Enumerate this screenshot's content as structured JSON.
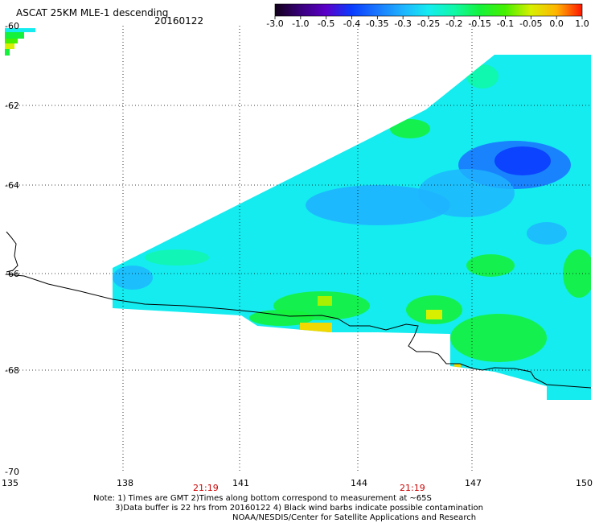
{
  "title": "ASCAT 25KM MLE-1 descending",
  "date": "20160122",
  "colorbar": {
    "tick_labels": [
      "-3.0",
      "-1.0",
      "-0.5",
      "-0.4",
      "-0.35",
      "-0.3",
      "-0.25",
      "-0.2",
      "-0.15",
      "-0.1",
      "-0.05",
      "0.0",
      "1.0"
    ],
    "colors": [
      "#12001a",
      "#38007a",
      "#5a00c8",
      "#0a3cff",
      "#1a78ff",
      "#1eb4ff",
      "#14ecf0",
      "#10f8a8",
      "#14f23c",
      "#46f000",
      "#d8f000",
      "#ffb400",
      "#ff1400"
    ]
  },
  "lat_labels": [
    "-60",
    "-62",
    "-64",
    "-66",
    "-68",
    "-70"
  ],
  "lon_labels": [
    "135",
    "138",
    "141",
    "144",
    "147",
    "150"
  ],
  "time_labels": [
    "21:19",
    "21:19"
  ],
  "note": {
    "line1": "Note: 1) Times are GMT 2)Times along bottom correspond to measurement at ~65S",
    "line2": "3)Data buffer is 22 hrs from 20160122 4) Black wind barbs indicate possible contamination",
    "line3": "NOAA/NESDIS/Center for Satellite Applications and Research"
  },
  "colors": {
    "swath_background": "#14ecf0",
    "coastline": "#000000",
    "grid": "#000000"
  }
}
